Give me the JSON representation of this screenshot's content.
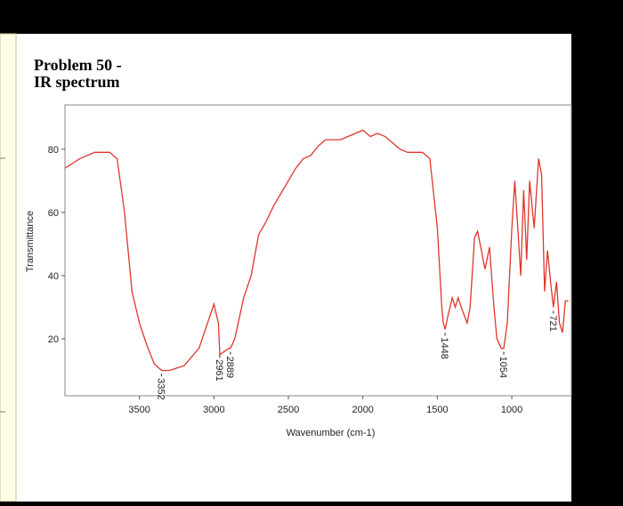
{
  "chart_data": {
    "type": "line",
    "title_lines": [
      "Problem 50 -",
      "IR spectrum"
    ],
    "x_label": "Wavenumber (cm-1)",
    "y_label": "Transmittance",
    "xlim": [
      4000,
      600
    ],
    "ylim": [
      2,
      94
    ],
    "xticks": [
      3500,
      3000,
      2500,
      2000,
      1500,
      1000
    ],
    "yticks": [
      20,
      40,
      60,
      80
    ],
    "series": [
      {
        "color": "#e0352b",
        "x": [
          4000,
          3900,
          3800,
          3700,
          3650,
          3600,
          3550,
          3500,
          3450,
          3400,
          3350,
          3300,
          3200,
          3100,
          3050,
          3000,
          2970,
          2960,
          2930,
          2900,
          2889,
          2860,
          2800,
          2750,
          2700,
          2650,
          2600,
          2550,
          2500,
          2450,
          2400,
          2350,
          2300,
          2250,
          2200,
          2150,
          2100,
          2050,
          2000,
          1950,
          1900,
          1850,
          1800,
          1750,
          1700,
          1650,
          1600,
          1550,
          1500,
          1470,
          1460,
          1448,
          1430,
          1400,
          1380,
          1360,
          1340,
          1300,
          1280,
          1250,
          1230,
          1200,
          1180,
          1150,
          1120,
          1100,
          1070,
          1054,
          1030,
          1000,
          980,
          960,
          940,
          920,
          900,
          880,
          850,
          820,
          800,
          780,
          760,
          740,
          721,
          700,
          680,
          660,
          640,
          620
        ],
        "values": [
          74,
          77,
          79,
          79,
          77,
          60,
          35,
          25,
          18,
          12,
          10,
          10,
          11.5,
          17,
          24,
          31,
          25,
          15,
          16,
          17,
          17,
          20,
          33,
          40,
          53,
          57,
          62,
          66,
          70,
          74,
          77,
          78,
          81,
          83,
          83,
          83,
          84,
          85,
          86,
          84,
          85,
          84,
          82,
          80,
          79,
          79,
          79,
          77,
          55,
          30,
          25,
          23,
          27,
          33,
          30,
          33,
          30,
          25,
          30,
          52,
          54,
          47,
          42,
          49,
          30,
          20,
          17,
          17,
          25,
          55,
          70,
          55,
          40,
          67,
          45,
          70,
          55,
          77,
          72,
          35,
          48,
          38,
          30,
          38,
          25,
          22,
          32,
          32
        ]
      }
    ],
    "peak_labels": [
      3352,
      2961,
      2889,
      1448,
      1054,
      721
    ]
  }
}
